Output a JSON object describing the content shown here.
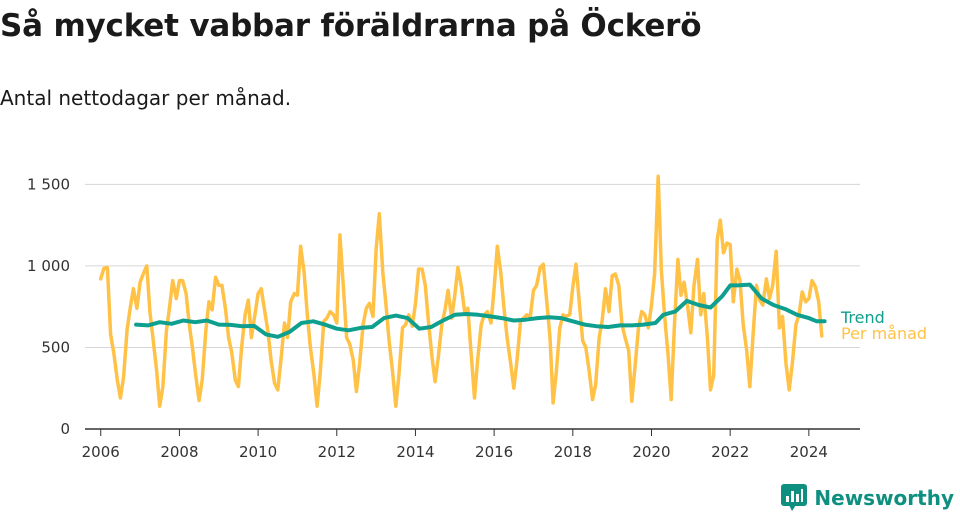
{
  "header": {
    "title": "Så mycket vabbar föräldrarna på Öckerö",
    "subtitle": "Antal nettodagar per månad."
  },
  "brand": {
    "name": "Newsworthy",
    "logo_icon": "bar-chart-speech-bubble-icon",
    "color": "#0e8f7f"
  },
  "chart_data": {
    "type": "line",
    "title": "",
    "xlabel": "",
    "ylabel": "",
    "xlim": [
      2005.6,
      2025.3
    ],
    "ylim": [
      0,
      1600
    ],
    "yticks": [
      0,
      500,
      1000,
      1500
    ],
    "ytick_labels": [
      "0",
      "500",
      "1 000",
      "1 500"
    ],
    "xticks": [
      2006,
      2008,
      2010,
      2012,
      2014,
      2016,
      2018,
      2020,
      2022,
      2024
    ],
    "xtick_labels": [
      "2006",
      "2008",
      "2010",
      "2012",
      "2014",
      "2016",
      "2018",
      "2020",
      "2022",
      "2024"
    ],
    "grid": "horizontal",
    "legend": "right-end-labels",
    "series": [
      {
        "name": "Per månad",
        "color": "#ffc247",
        "points": [
          [
            2006.0,
            920
          ],
          [
            2006.08,
            985
          ],
          [
            2006.17,
            990
          ],
          [
            2006.25,
            580
          ],
          [
            2006.33,
            470
          ],
          [
            2006.42,
            300
          ],
          [
            2006.5,
            190
          ],
          [
            2006.58,
            320
          ],
          [
            2006.67,
            610
          ],
          [
            2006.75,
            740
          ],
          [
            2006.83,
            860
          ],
          [
            2006.92,
            740
          ],
          [
            2007.0,
            900
          ],
          [
            2007.08,
            950
          ],
          [
            2007.17,
            1000
          ],
          [
            2007.25,
            720
          ],
          [
            2007.33,
            550
          ],
          [
            2007.42,
            360
          ],
          [
            2007.5,
            140
          ],
          [
            2007.58,
            260
          ],
          [
            2007.67,
            600
          ],
          [
            2007.75,
            750
          ],
          [
            2007.83,
            910
          ],
          [
            2007.92,
            800
          ],
          [
            2008.0,
            910
          ],
          [
            2008.08,
            910
          ],
          [
            2008.17,
            830
          ],
          [
            2008.25,
            640
          ],
          [
            2008.33,
            500
          ],
          [
            2008.42,
            320
          ],
          [
            2008.5,
            175
          ],
          [
            2008.58,
            300
          ],
          [
            2008.67,
            600
          ],
          [
            2008.75,
            780
          ],
          [
            2008.83,
            730
          ],
          [
            2008.92,
            930
          ],
          [
            2009.0,
            880
          ],
          [
            2009.08,
            880
          ],
          [
            2009.17,
            740
          ],
          [
            2009.25,
            560
          ],
          [
            2009.33,
            470
          ],
          [
            2009.42,
            300
          ],
          [
            2009.5,
            260
          ],
          [
            2009.58,
            500
          ],
          [
            2009.67,
            700
          ],
          [
            2009.75,
            790
          ],
          [
            2009.83,
            560
          ],
          [
            2009.92,
            700
          ],
          [
            2010.0,
            830
          ],
          [
            2010.08,
            860
          ],
          [
            2010.17,
            720
          ],
          [
            2010.25,
            600
          ],
          [
            2010.33,
            420
          ],
          [
            2010.42,
            280
          ],
          [
            2010.5,
            240
          ],
          [
            2010.58,
            420
          ],
          [
            2010.67,
            650
          ],
          [
            2010.75,
            560
          ],
          [
            2010.83,
            780
          ],
          [
            2010.92,
            830
          ],
          [
            2011.0,
            820
          ],
          [
            2011.08,
            1120
          ],
          [
            2011.17,
            960
          ],
          [
            2011.25,
            700
          ],
          [
            2011.33,
            500
          ],
          [
            2011.42,
            330
          ],
          [
            2011.5,
            140
          ],
          [
            2011.58,
            350
          ],
          [
            2011.67,
            660
          ],
          [
            2011.75,
            680
          ],
          [
            2011.83,
            720
          ],
          [
            2011.92,
            700
          ],
          [
            2012.0,
            650
          ],
          [
            2012.08,
            1190
          ],
          [
            2012.17,
            860
          ],
          [
            2012.25,
            560
          ],
          [
            2012.33,
            520
          ],
          [
            2012.42,
            420
          ],
          [
            2012.5,
            230
          ],
          [
            2012.58,
            400
          ],
          [
            2012.67,
            640
          ],
          [
            2012.75,
            740
          ],
          [
            2012.83,
            770
          ],
          [
            2012.92,
            690
          ],
          [
            2013.0,
            1100
          ],
          [
            2013.08,
            1320
          ],
          [
            2013.17,
            960
          ],
          [
            2013.25,
            760
          ],
          [
            2013.33,
            540
          ],
          [
            2013.42,
            350
          ],
          [
            2013.5,
            140
          ],
          [
            2013.58,
            330
          ],
          [
            2013.67,
            620
          ],
          [
            2013.75,
            640
          ],
          [
            2013.83,
            700
          ],
          [
            2013.92,
            630
          ],
          [
            2014.0,
            770
          ],
          [
            2014.08,
            980
          ],
          [
            2014.17,
            980
          ],
          [
            2014.25,
            880
          ],
          [
            2014.33,
            660
          ],
          [
            2014.42,
            440
          ],
          [
            2014.5,
            290
          ],
          [
            2014.58,
            440
          ],
          [
            2014.67,
            640
          ],
          [
            2014.75,
            730
          ],
          [
            2014.83,
            850
          ],
          [
            2014.92,
            680
          ],
          [
            2015.0,
            820
          ],
          [
            2015.08,
            990
          ],
          [
            2015.17,
            870
          ],
          [
            2015.25,
            720
          ],
          [
            2015.33,
            740
          ],
          [
            2015.42,
            450
          ],
          [
            2015.5,
            190
          ],
          [
            2015.58,
            420
          ],
          [
            2015.67,
            640
          ],
          [
            2015.75,
            700
          ],
          [
            2015.83,
            720
          ],
          [
            2015.92,
            650
          ],
          [
            2016.0,
            860
          ],
          [
            2016.08,
            1120
          ],
          [
            2016.17,
            960
          ],
          [
            2016.25,
            740
          ],
          [
            2016.33,
            560
          ],
          [
            2016.42,
            400
          ],
          [
            2016.5,
            250
          ],
          [
            2016.58,
            420
          ],
          [
            2016.67,
            660
          ],
          [
            2016.75,
            680
          ],
          [
            2016.83,
            700
          ],
          [
            2016.92,
            690
          ],
          [
            2017.0,
            850
          ],
          [
            2017.08,
            880
          ],
          [
            2017.17,
            990
          ],
          [
            2017.25,
            1010
          ],
          [
            2017.33,
            800
          ],
          [
            2017.42,
            560
          ],
          [
            2017.5,
            160
          ],
          [
            2017.58,
            350
          ],
          [
            2017.67,
            620
          ],
          [
            2017.75,
            700
          ],
          [
            2017.83,
            690
          ],
          [
            2017.92,
            700
          ],
          [
            2018.0,
            870
          ],
          [
            2018.08,
            1010
          ],
          [
            2018.17,
            760
          ],
          [
            2018.25,
            540
          ],
          [
            2018.33,
            500
          ],
          [
            2018.42,
            350
          ],
          [
            2018.5,
            180
          ],
          [
            2018.58,
            270
          ],
          [
            2018.67,
            560
          ],
          [
            2018.75,
            670
          ],
          [
            2018.83,
            860
          ],
          [
            2018.92,
            720
          ],
          [
            2019.0,
            940
          ],
          [
            2019.08,
            950
          ],
          [
            2019.17,
            880
          ],
          [
            2019.25,
            640
          ],
          [
            2019.33,
            560
          ],
          [
            2019.42,
            480
          ],
          [
            2019.5,
            170
          ],
          [
            2019.58,
            380
          ],
          [
            2019.67,
            620
          ],
          [
            2019.75,
            720
          ],
          [
            2019.83,
            700
          ],
          [
            2019.92,
            620
          ],
          [
            2020.0,
            760
          ],
          [
            2020.08,
            950
          ],
          [
            2020.17,
            1550
          ],
          [
            2020.25,
            980
          ],
          [
            2020.33,
            700
          ],
          [
            2020.42,
            460
          ],
          [
            2020.5,
            180
          ],
          [
            2020.58,
            620
          ],
          [
            2020.67,
            1040
          ],
          [
            2020.75,
            820
          ],
          [
            2020.83,
            900
          ],
          [
            2020.92,
            750
          ],
          [
            2021.0,
            590
          ],
          [
            2021.08,
            880
          ],
          [
            2021.17,
            1040
          ],
          [
            2021.25,
            700
          ],
          [
            2021.33,
            830
          ],
          [
            2021.42,
            560
          ],
          [
            2021.5,
            240
          ],
          [
            2021.58,
            330
          ],
          [
            2021.67,
            1160
          ],
          [
            2021.75,
            1280
          ],
          [
            2021.83,
            1080
          ],
          [
            2021.92,
            1140
          ],
          [
            2022.0,
            1130
          ],
          [
            2022.08,
            780
          ],
          [
            2022.17,
            980
          ],
          [
            2022.25,
            910
          ],
          [
            2022.33,
            640
          ],
          [
            2022.42,
            480
          ],
          [
            2022.5,
            260
          ],
          [
            2022.58,
            570
          ],
          [
            2022.67,
            880
          ],
          [
            2022.75,
            790
          ],
          [
            2022.83,
            760
          ],
          [
            2022.92,
            920
          ],
          [
            2023.0,
            800
          ],
          [
            2023.08,
            880
          ],
          [
            2023.17,
            1090
          ],
          [
            2023.25,
            620
          ],
          [
            2023.33,
            690
          ],
          [
            2023.42,
            400
          ],
          [
            2023.5,
            240
          ],
          [
            2023.58,
            400
          ],
          [
            2023.67,
            640
          ],
          [
            2023.75,
            700
          ],
          [
            2023.83,
            840
          ],
          [
            2023.92,
            780
          ],
          [
            2024.0,
            800
          ],
          [
            2024.08,
            910
          ],
          [
            2024.17,
            870
          ],
          [
            2024.25,
            780
          ],
          [
            2024.33,
            570
          ]
        ]
      },
      {
        "name": "Trend",
        "color": "#0e9f8f",
        "points": [
          [
            2006.9,
            640
          ],
          [
            2007.2,
            635
          ],
          [
            2007.5,
            655
          ],
          [
            2007.8,
            645
          ],
          [
            2008.1,
            665
          ],
          [
            2008.4,
            655
          ],
          [
            2008.7,
            665
          ],
          [
            2009.0,
            640
          ],
          [
            2009.3,
            638
          ],
          [
            2009.6,
            630
          ],
          [
            2009.9,
            632
          ],
          [
            2010.2,
            580
          ],
          [
            2010.5,
            565
          ],
          [
            2010.8,
            595
          ],
          [
            2011.1,
            650
          ],
          [
            2011.4,
            660
          ],
          [
            2011.7,
            640
          ],
          [
            2012.0,
            615
          ],
          [
            2012.3,
            605
          ],
          [
            2012.6,
            620
          ],
          [
            2012.9,
            625
          ],
          [
            2013.2,
            680
          ],
          [
            2013.5,
            695
          ],
          [
            2013.8,
            680
          ],
          [
            2014.1,
            615
          ],
          [
            2014.4,
            625
          ],
          [
            2014.7,
            665
          ],
          [
            2015.0,
            700
          ],
          [
            2015.3,
            705
          ],
          [
            2015.6,
            700
          ],
          [
            2015.9,
            690
          ],
          [
            2016.2,
            680
          ],
          [
            2016.5,
            665
          ],
          [
            2016.8,
            670
          ],
          [
            2017.1,
            680
          ],
          [
            2017.4,
            685
          ],
          [
            2017.7,
            680
          ],
          [
            2018.0,
            660
          ],
          [
            2018.3,
            640
          ],
          [
            2018.6,
            630
          ],
          [
            2018.9,
            625
          ],
          [
            2019.2,
            635
          ],
          [
            2019.5,
            635
          ],
          [
            2019.8,
            640
          ],
          [
            2020.1,
            650
          ],
          [
            2020.3,
            700
          ],
          [
            2020.6,
            720
          ],
          [
            2020.9,
            785
          ],
          [
            2021.2,
            760
          ],
          [
            2021.5,
            745
          ],
          [
            2021.8,
            815
          ],
          [
            2022.0,
            880
          ],
          [
            2022.2,
            880
          ],
          [
            2022.5,
            885
          ],
          [
            2022.8,
            800
          ],
          [
            2023.1,
            760
          ],
          [
            2023.4,
            735
          ],
          [
            2023.7,
            700
          ],
          [
            2024.0,
            680
          ],
          [
            2024.2,
            660
          ],
          [
            2024.4,
            660
          ]
        ]
      }
    ]
  }
}
